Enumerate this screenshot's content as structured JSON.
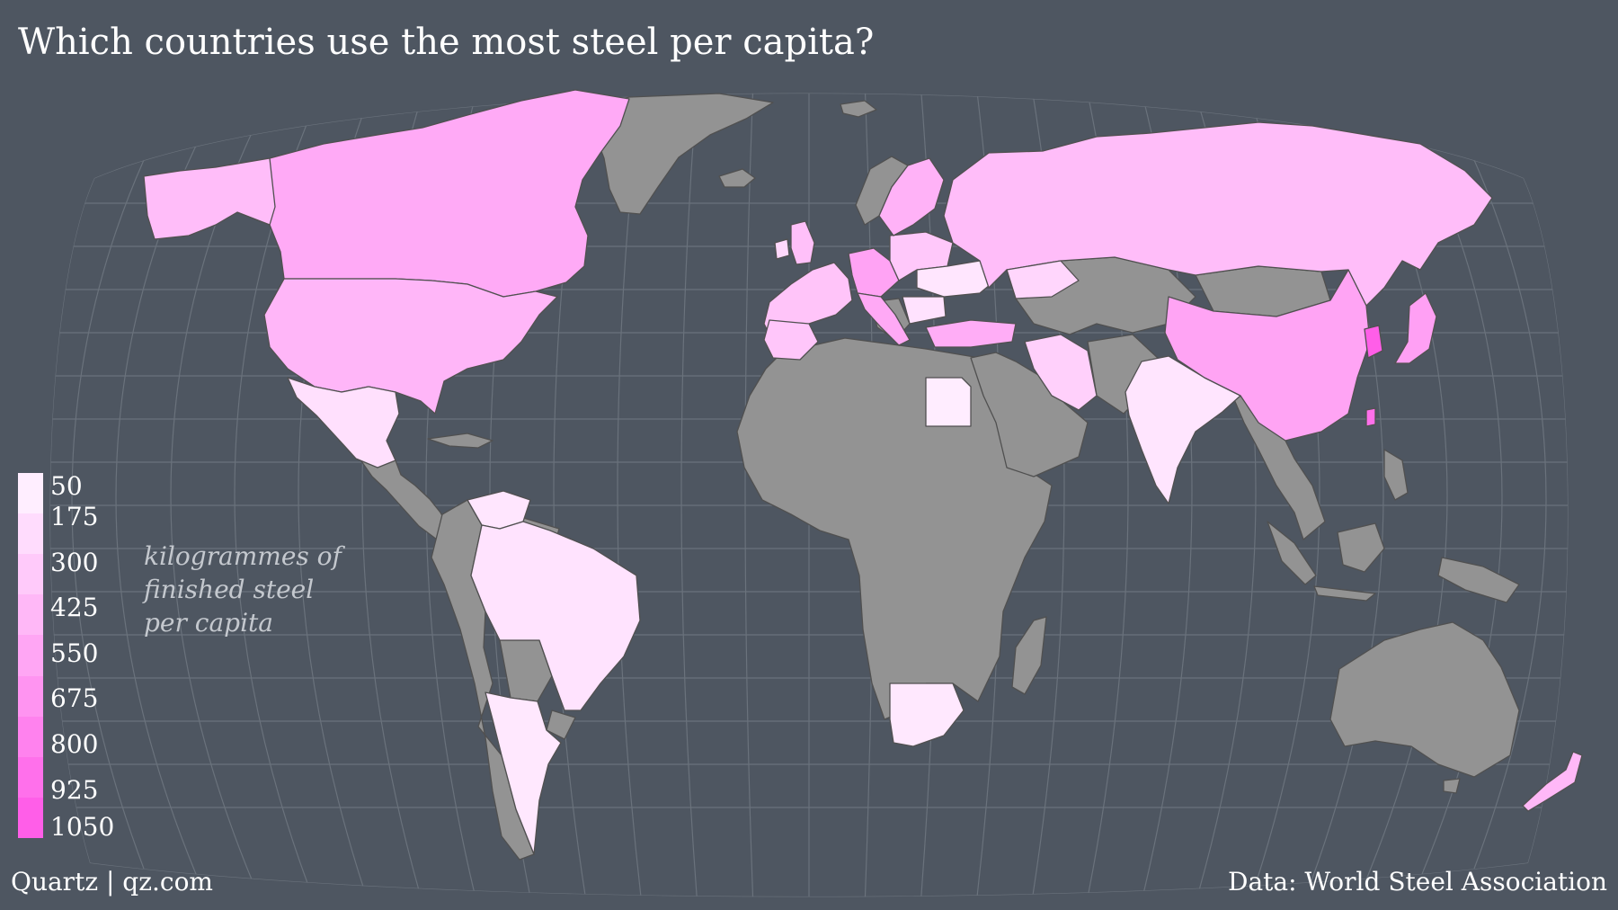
{
  "title": "Which countries use the most steel per capita?",
  "legend": {
    "unit_lines": [
      "kilogrammes of",
      "finished steel",
      "per capita"
    ],
    "ticks": [
      "50",
      "175",
      "300",
      "425",
      "550",
      "675",
      "800",
      "925",
      "1050"
    ],
    "colors": [
      "#ffeeff",
      "#ffdcfd",
      "#ffcafa",
      "#ffb8f7",
      "#ffa6f4",
      "#ff94f1",
      "#ff82ee",
      "#ff70eb",
      "#ff5ee8"
    ]
  },
  "footer": {
    "credit": "Quartz | qz.com",
    "source": "Data: World Steel Association"
  },
  "colors": {
    "background": "#4e5661",
    "no_data": "#939393",
    "graticule": "#6a727c"
  },
  "chart_data": {
    "type": "choropleth",
    "projection": "robinson",
    "value": "kilogrammes of finished steel per capita",
    "scale": {
      "min": 50,
      "max": 1050
    },
    "regions": [
      {
        "name": "Canada",
        "value": 420
      },
      {
        "name": "United States",
        "value": 340
      },
      {
        "name": "Mexico",
        "value": 150
      },
      {
        "name": "Brazil",
        "value": 130
      },
      {
        "name": "Argentina",
        "value": 110
      },
      {
        "name": "Venezuela",
        "value": 100
      },
      {
        "name": "Russia",
        "value": 300
      },
      {
        "name": "China",
        "value": 500
      },
      {
        "name": "South Korea",
        "value": 1050
      },
      {
        "name": "Japan",
        "value": 550
      },
      {
        "name": "Taiwan",
        "value": 800
      },
      {
        "name": "India",
        "value": 60
      },
      {
        "name": "Iran",
        "value": 230
      },
      {
        "name": "Turkey",
        "value": 400
      },
      {
        "name": "Egypt",
        "value": 100
      },
      {
        "name": "South Africa",
        "value": 100
      },
      {
        "name": "Western Europe",
        "value": 350
      },
      {
        "name": "Germany",
        "value": 500
      },
      {
        "name": "Italy",
        "value": 450
      },
      {
        "name": "Ukraine",
        "value": 150
      },
      {
        "name": "New Zealand",
        "value": 300
      }
    ]
  }
}
